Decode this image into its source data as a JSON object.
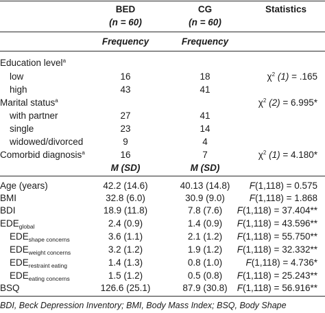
{
  "header": {
    "bed_title": "BED",
    "bed_n": "(n = 60)",
    "cg_title": "CG",
    "cg_n": "(n = 60)",
    "stats_title": "Statistics",
    "freq_label": "Frequency"
  },
  "categorical": {
    "education": {
      "label": "Education level",
      "sup": "a"
    },
    "edu_low": {
      "label": "low",
      "bed": "16",
      "cg": "18"
    },
    "edu_high": {
      "label": "high",
      "bed": "43",
      "cg": "41"
    },
    "edu_stat": {
      "chi": "χ",
      "df": "2",
      "df_arg": " (1)",
      "value": " = .165"
    },
    "marital": {
      "label": "Marital status",
      "sup": "a"
    },
    "marital_stat": {
      "chi": "χ",
      "df": "2",
      "df_arg": " (2)",
      "value": " = 6.995*"
    },
    "with_partner": {
      "label": "with partner",
      "bed": "27",
      "cg": "41"
    },
    "single": {
      "label": "single",
      "bed": "23",
      "cg": "14"
    },
    "widowed": {
      "label": "widowed/divorced",
      "bed": "9",
      "cg": "4"
    },
    "comorbid": {
      "label": "Comorbid diagnosis",
      "sup": "a",
      "bed": "16",
      "cg": "7"
    },
    "comorbid_stat": {
      "chi": "χ",
      "df": "2",
      "df_arg": " (1)",
      "value": " = 4.180*"
    }
  },
  "msd_label": "M (SD)",
  "continuous": {
    "age": {
      "label": "Age (years)",
      "bed": "42.2 (14.6)",
      "cg": "40.13 (14.8)",
      "f": "F",
      "stat": "(1,118) = 0.575"
    },
    "bmi": {
      "label": "BMI",
      "bed": "32.8 (6.0)",
      "cg": "30.9 (9.0)",
      "f": "F",
      "stat": "(1,118) = 1.868"
    },
    "bdi": {
      "label": "BDI",
      "bed": "18.9 (11.8)",
      "cg": "7.8 (7.6)",
      "f": "F",
      "stat": "(1,118) = 37.404**"
    },
    "ede_global": {
      "label": "EDE",
      "sub": "global",
      "bed": "2.4 (0.9)",
      "cg": "1.4 (0.9)",
      "f": "F",
      "stat": "(1,118) = 43.596**"
    },
    "ede_shape": {
      "label": "EDE",
      "sub": "shape concerns",
      "bed": "3.6 (1.1)",
      "cg": "2.1 (1.2)",
      "f": "F",
      "stat": "(1,118) = 55.750**"
    },
    "ede_weight": {
      "label": "EDE",
      "sub": "weight concerns",
      "bed": "3.2 (1.2)",
      "cg": "1.9 (1.2)",
      "f": "F",
      "stat": "(1,118) = 32.332**"
    },
    "ede_restraint": {
      "label": "EDE",
      "sub": "restraint eating",
      "bed": "1.4 (1.3)",
      "cg": "0.8 (1.0)",
      "f": "F",
      "stat": "(1,118) = 4.736*"
    },
    "ede_eating": {
      "label": "EDE",
      "sub": "eating concerns",
      "bed": "1.5 (1.2)",
      "cg": "0.5 (0.8)",
      "f": "F",
      "stat": "(1,118) = 25.243**"
    },
    "bsq": {
      "label": "BSQ",
      "bed": "126.6 (25.1)",
      "cg": "87.9 (30.8)",
      "f": "F",
      "stat": "(1,118) = 56.916**"
    }
  },
  "footnote": "BDI, Beck Depression Inventory; BMI, Body Mass Index; BSQ, Body Shape"
}
